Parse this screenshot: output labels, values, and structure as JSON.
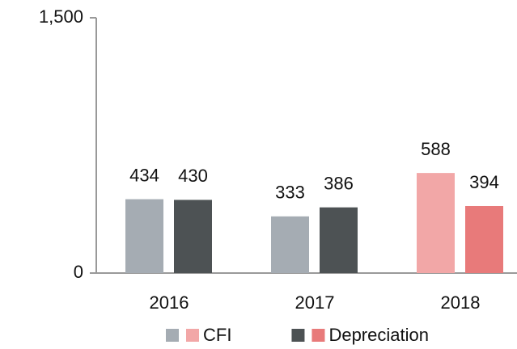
{
  "chart_data": {
    "type": "bar",
    "categories": [
      "2016",
      "2017",
      "2018"
    ],
    "series": [
      {
        "name": "CFI",
        "colors": [
          "#a5acb3",
          "#a5acb3",
          "#f2a7a7"
        ],
        "values": [
          434,
          333,
          588
        ]
      },
      {
        "name": "Depreciation",
        "colors": [
          "#4d5254",
          "#4d5254",
          "#e87a7a"
        ],
        "values": [
          430,
          386,
          394
        ]
      }
    ],
    "ylim": [
      0,
      1500
    ],
    "yticks": [
      0,
      {
        "value": 1500,
        "label": "1,500"
      }
    ],
    "grid": false
  }
}
